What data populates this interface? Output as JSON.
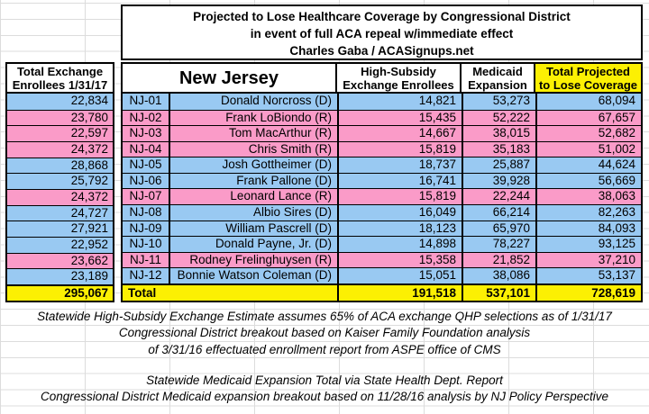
{
  "title": {
    "line1": "Projected to Lose Healthcare Coverage by Congressional District",
    "line2": "in event of full ACA repeal w/immediate effect",
    "line3": "Charles Gaba / ACASignups.net"
  },
  "left_table": {
    "header": [
      "Total Exchange",
      "Enrollees 1/31/17"
    ],
    "total": "295,067"
  },
  "table": {
    "state": "New Jersey",
    "columns": {
      "high_subsidy": [
        "High-Subsidy",
        "Exchange Enrollees"
      ],
      "medicaid": [
        "Medicaid",
        "Expansion"
      ],
      "total": [
        "Total Projected",
        "to Lose Coverage"
      ]
    },
    "rows": [
      {
        "district": "NJ-01",
        "representative": "Donald Norcross (D)",
        "party": "D",
        "exchange_enrollees": "22,834",
        "high_subsidy": "14,821",
        "medicaid": "53,273",
        "total": "68,094"
      },
      {
        "district": "NJ-02",
        "representative": "Frank LoBiondo (R)",
        "party": "R",
        "exchange_enrollees": "23,780",
        "high_subsidy": "15,435",
        "medicaid": "52,222",
        "total": "67,657"
      },
      {
        "district": "NJ-03",
        "representative": "Tom MacArthur (R)",
        "party": "R",
        "exchange_enrollees": "22,597",
        "high_subsidy": "14,667",
        "medicaid": "38,015",
        "total": "52,682"
      },
      {
        "district": "NJ-04",
        "representative": "Chris Smith (R)",
        "party": "R",
        "exchange_enrollees": "24,372",
        "high_subsidy": "15,819",
        "medicaid": "35,183",
        "total": "51,002"
      },
      {
        "district": "NJ-05",
        "representative": "Josh Gottheimer (D)",
        "party": "D",
        "exchange_enrollees": "28,868",
        "high_subsidy": "18,737",
        "medicaid": "25,887",
        "total": "44,624"
      },
      {
        "district": "NJ-06",
        "representative": "Frank Pallone (D)",
        "party": "D",
        "exchange_enrollees": "25,792",
        "high_subsidy": "16,741",
        "medicaid": "39,928",
        "total": "56,669"
      },
      {
        "district": "NJ-07",
        "representative": "Leonard Lance (R)",
        "party": "R",
        "exchange_enrollees": "24,372",
        "high_subsidy": "15,819",
        "medicaid": "22,244",
        "total": "38,063"
      },
      {
        "district": "NJ-08",
        "representative": "Albio Sires (D)",
        "party": "D",
        "exchange_enrollees": "24,727",
        "high_subsidy": "16,049",
        "medicaid": "66,214",
        "total": "82,263"
      },
      {
        "district": "NJ-09",
        "representative": "William Pascrell (D)",
        "party": "D",
        "exchange_enrollees": "27,921",
        "high_subsidy": "18,123",
        "medicaid": "65,970",
        "total": "84,093"
      },
      {
        "district": "NJ-10",
        "representative": "Donald Payne, Jr. (D)",
        "party": "D",
        "exchange_enrollees": "22,952",
        "high_subsidy": "14,898",
        "medicaid": "78,227",
        "total": "93,125"
      },
      {
        "district": "NJ-11",
        "representative": "Rodney Frelinghuysen (R)",
        "party": "R",
        "exchange_enrollees": "23,662",
        "high_subsidy": "15,358",
        "medicaid": "21,852",
        "total": "37,210"
      },
      {
        "district": "NJ-12",
        "representative": "Bonnie Watson Coleman (D)",
        "party": "D",
        "exchange_enrollees": "23,189",
        "high_subsidy": "15,051",
        "medicaid": "38,086",
        "total": "53,137"
      }
    ],
    "total_row": {
      "label": "Total",
      "high_subsidy": "191,518",
      "medicaid": "537,101",
      "total": "728,619"
    }
  },
  "footnotes": {
    "exchange": [
      "Statewide High-Subsidy Exchange Estimate assumes 65% of ACA exchange QHP selections as of 1/31/17",
      "Congressional District breakout based on Kaiser Family Foundation analysis",
      "of 3/31/16 effectuated enrollment report from ASPE office of CMS"
    ],
    "medicaid": [
      "Statewide Medicaid Expansion Total via State Health Dept. Report",
      "Congressional District Medicaid expansion breakout based on 11/28/16 analysis by NJ Policy Perspective"
    ]
  },
  "colors": {
    "democrat_blue": "#99C9F2",
    "republican_pink": "#FA9BC8",
    "highlight_yellow": "#FCF003",
    "gridline_gray": "#DCDCDC"
  }
}
